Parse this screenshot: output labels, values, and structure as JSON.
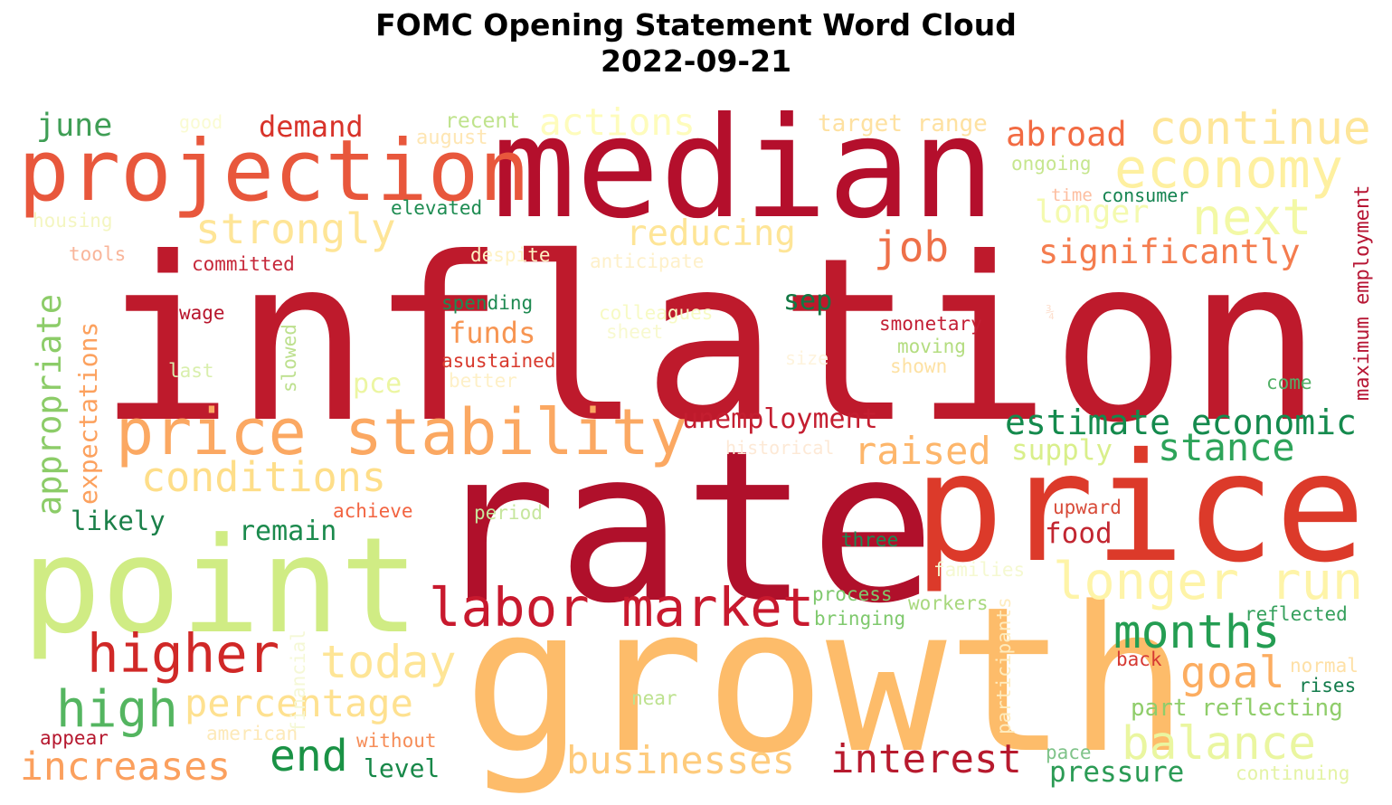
{
  "title_line1": "FOMC Opening Statement Word Cloud",
  "title_line2": "2022-09-21",
  "words": [
    {
      "text": "inflation",
      "color": "#be1a2c"
    },
    {
      "text": "rate",
      "color": "#b0102b"
    },
    {
      "text": "growth",
      "color": "#fdbc6a"
    },
    {
      "text": "median",
      "color": "#b40f2c"
    },
    {
      "text": "price",
      "color": "#dc3a2a"
    },
    {
      "text": "point",
      "color": "#d0ec84"
    },
    {
      "text": "projection",
      "color": "#e8573c"
    },
    {
      "text": "price stability",
      "color": "#fba862"
    },
    {
      "text": "labor market",
      "color": "#c8192e"
    },
    {
      "text": "economy",
      "color": "#fef0a0"
    },
    {
      "text": "continue",
      "color": "#fee699"
    },
    {
      "text": "higher",
      "color": "#d02827"
    },
    {
      "text": "longer run",
      "color": "#fef4a8"
    },
    {
      "text": "conditions",
      "color": "#fede89"
    },
    {
      "text": "next",
      "color": "#f3f9a6"
    },
    {
      "text": "high",
      "color": "#54b560"
    },
    {
      "text": "months",
      "color": "#249d52"
    },
    {
      "text": "today",
      "color": "#fee596"
    },
    {
      "text": "interest",
      "color": "#b71a2e"
    },
    {
      "text": "businesses",
      "color": "#fecb7c"
    },
    {
      "text": "balance",
      "color": "#eaf6a0"
    },
    {
      "text": "increases",
      "color": "#fba05e"
    },
    {
      "text": "actions",
      "color": "#fefcbc"
    },
    {
      "text": "strongly",
      "color": "#fee597"
    },
    {
      "text": "job",
      "color": "#ee7049"
    },
    {
      "text": "percentage",
      "color": "#fee190"
    },
    {
      "text": "estimate economic",
      "color": "#148a4d"
    },
    {
      "text": "stance",
      "color": "#2ea45a"
    },
    {
      "text": "end",
      "color": "#1a9245"
    },
    {
      "text": "goal",
      "color": "#fcad61"
    },
    {
      "text": "significantly",
      "color": "#f47c4e"
    },
    {
      "text": "reducing",
      "color": "#fee597"
    },
    {
      "text": "raised",
      "color": "#fdb66b"
    },
    {
      "text": "abroad",
      "color": "#f26b43"
    },
    {
      "text": "longer",
      "color": "#f4faaf"
    },
    {
      "text": "appropriate",
      "color": "#8ccc68"
    },
    {
      "text": "demand",
      "color": "#d8332a"
    },
    {
      "text": "june",
      "color": "#3f9e55"
    },
    {
      "text": "unemployment",
      "color": "#c41e30"
    },
    {
      "text": "remain",
      "color": "#1b8a4d"
    },
    {
      "text": "likely",
      "color": "#1b8049"
    },
    {
      "text": "expectations",
      "color": "#fca15e"
    },
    {
      "text": "funds",
      "color": "#f79552"
    },
    {
      "text": "supply",
      "color": "#d9ef8b"
    },
    {
      "text": "food",
      "color": "#c22631"
    },
    {
      "text": "pressure",
      "color": "#2b9b55"
    },
    {
      "text": "part reflecting",
      "color": "#8fcd6a"
    },
    {
      "text": "level",
      "color": "#188849"
    },
    {
      "text": "pce",
      "color": "#ecf6a2"
    },
    {
      "text": "sep",
      "color": "#137844"
    },
    {
      "text": "maximum employment",
      "color": "#b71634"
    },
    {
      "text": "target range",
      "color": "#fee1a1"
    },
    {
      "text": "recent",
      "color": "#bfe38c"
    },
    {
      "text": "august",
      "color": "#fee6b3"
    },
    {
      "text": "ongoing",
      "color": "#c6e68e"
    },
    {
      "text": "time",
      "color": "#fdbea0"
    },
    {
      "text": "consumer",
      "color": "#158451"
    },
    {
      "text": "elevated",
      "color": "#1e8c52"
    },
    {
      "text": "housing",
      "color": "#f4f6c1"
    },
    {
      "text": "good",
      "color": "#fafbd2"
    },
    {
      "text": "tools",
      "color": "#f9b59a"
    },
    {
      "text": "committed",
      "color": "#c6283a"
    },
    {
      "text": "despite",
      "color": "#fef2c4"
    },
    {
      "text": "anticipate",
      "color": "#fef0c9"
    },
    {
      "text": "wage",
      "color": "#b8152c"
    },
    {
      "text": "spending",
      "color": "#1f8a52"
    },
    {
      "text": "colleagues",
      "color": "#f7fac4"
    },
    {
      "text": "sheet",
      "color": "#f8f9cf"
    },
    {
      "text": "smonetary",
      "color": "#c31f35"
    },
    {
      "text": "moving",
      "color": "#b4dd80"
    },
    {
      "text": "size",
      "color": "#fef3dc"
    },
    {
      "text": "shown",
      "color": "#fde1a3"
    },
    {
      "text": "asustained",
      "color": "#d83a2e"
    },
    {
      "text": "better",
      "color": "#fef0c7"
    },
    {
      "text": "last",
      "color": "#d9efad"
    },
    {
      "text": "slowed",
      "color": "#bde08e"
    },
    {
      "text": "¾",
      "color": "#fde0d0"
    },
    {
      "text": "come",
      "color": "#52b067"
    },
    {
      "text": "historical",
      "color": "#fde9d6"
    },
    {
      "text": "achieve",
      "color": "#f26340"
    },
    {
      "text": "period",
      "color": "#c6e69d"
    },
    {
      "text": "upward",
      "color": "#d84b39"
    },
    {
      "text": "three",
      "color": "#1a8a52"
    },
    {
      "text": "families",
      "color": "#f5f9d1"
    },
    {
      "text": "process",
      "color": "#7ec86d"
    },
    {
      "text": "bringing",
      "color": "#7fc96d"
    },
    {
      "text": "workers",
      "color": "#a8d87e"
    },
    {
      "text": "reflected",
      "color": "#35a05c"
    },
    {
      "text": "financial",
      "color": "#f5f8d6"
    },
    {
      "text": "participants",
      "color": "#feecbe"
    },
    {
      "text": "back",
      "color": "#d63a33"
    },
    {
      "text": "normal",
      "color": "#fee0a6"
    },
    {
      "text": "rises",
      "color": "#137c4c"
    },
    {
      "text": "near",
      "color": "#bde28f"
    },
    {
      "text": "american",
      "color": "#fde9b8"
    },
    {
      "text": "appear",
      "color": "#b6182f"
    },
    {
      "text": "without",
      "color": "#f68d58"
    },
    {
      "text": "pace",
      "color": "#7fc389"
    },
    {
      "text": "continuing",
      "color": "#e4f3a5"
    }
  ]
}
